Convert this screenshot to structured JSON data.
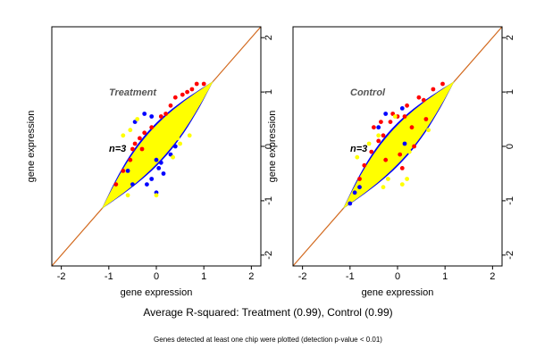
{
  "chart_data": [
    {
      "type": "scatter",
      "title": "Treatment",
      "annotation": "n=3",
      "xlabel": "gene expression",
      "ylabel": "gene expression",
      "xlim": [
        -2.2,
        2.2
      ],
      "ylim": [
        -2.2,
        2.2
      ],
      "xticks": [
        "-2",
        "-1",
        "0",
        "1",
        "2"
      ],
      "yticks": [
        "-2",
        "-1",
        "0",
        "1",
        "2"
      ],
      "reference_line": {
        "slope": 1,
        "intercept": 0,
        "color": "#d2691e"
      },
      "cloud": {
        "from": -1.15,
        "to": 1.2,
        "color": "#ffff00",
        "outline": "#0000ff"
      },
      "highlights": {
        "red": [
          [
            -0.35,
            0.15
          ],
          [
            -0.5,
            -0.05
          ],
          [
            -0.25,
            0.25
          ],
          [
            0.3,
            0.75
          ],
          [
            0.55,
            0.95
          ],
          [
            0.85,
            1.15
          ],
          [
            1.0,
            1.15
          ],
          [
            -0.7,
            -0.45
          ],
          [
            -0.55,
            -0.25
          ],
          [
            0.1,
            0.55
          ],
          [
            0.4,
            0.9
          ],
          [
            -0.1,
            0.35
          ],
          [
            0.65,
            1.0
          ],
          [
            -0.45,
            0.05
          ],
          [
            0.2,
            0.6
          ],
          [
            -0.85,
            -0.7
          ],
          [
            0.75,
            1.05
          ],
          [
            -0.3,
            -0.05
          ]
        ],
        "blue": [
          [
            -0.1,
            0.55
          ],
          [
            -0.25,
            0.6
          ],
          [
            -0.45,
            0.45
          ],
          [
            0.0,
            -0.25
          ],
          [
            0.05,
            -0.4
          ],
          [
            0.15,
            -0.5
          ],
          [
            -0.1,
            -0.6
          ],
          [
            -0.2,
            -0.7
          ],
          [
            0.1,
            -0.3
          ],
          [
            -0.5,
            -0.7
          ],
          [
            0.3,
            -0.15
          ],
          [
            0.0,
            -0.85
          ],
          [
            0.4,
            0.0
          ],
          [
            -0.6,
            -0.45
          ]
        ],
        "yellow": [
          [
            -0.7,
            0.2
          ],
          [
            -0.55,
            0.3
          ],
          [
            -0.4,
            0.5
          ],
          [
            0.5,
            0.05
          ],
          [
            0.35,
            -0.2
          ],
          [
            0.0,
            -0.9
          ],
          [
            -0.3,
            -0.45
          ],
          [
            0.45,
            0.15
          ],
          [
            -0.6,
            -0.9
          ],
          [
            0.7,
            0.2
          ]
        ]
      }
    },
    {
      "type": "scatter",
      "title": "Control",
      "annotation": "n=3",
      "xlabel": "gene expression",
      "ylabel": "gene expression",
      "xlim": [
        -2.2,
        2.2
      ],
      "ylim": [
        -2.2,
        2.2
      ],
      "xticks": [
        "-2",
        "-1",
        "0",
        "1",
        "2"
      ],
      "yticks": [
        "-2",
        "-1",
        "0",
        "1",
        "2"
      ],
      "reference_line": {
        "slope": 1,
        "intercept": 0,
        "color": "#d2691e"
      },
      "cloud": {
        "from": -1.15,
        "to": 1.2,
        "color": "#ffff00",
        "outline": "#0000ff"
      },
      "highlights": {
        "red": [
          [
            -0.3,
            0.2
          ],
          [
            -0.5,
            0.35
          ],
          [
            -0.15,
            0.45
          ],
          [
            0.0,
            0.55
          ],
          [
            -0.4,
            0.1
          ],
          [
            -0.55,
            -0.1
          ],
          [
            0.2,
            0.75
          ],
          [
            0.45,
            0.9
          ],
          [
            0.75,
            1.05
          ],
          [
            0.95,
            1.15
          ],
          [
            0.15,
            0.55
          ],
          [
            0.55,
            0.85
          ],
          [
            0.3,
            0.35
          ],
          [
            -0.7,
            -0.35
          ],
          [
            -0.25,
            -0.25
          ],
          [
            0.05,
            -0.15
          ],
          [
            0.35,
            0.0
          ],
          [
            -0.8,
            -0.6
          ],
          [
            -0.1,
            0.6
          ],
          [
            -0.35,
            0.45
          ],
          [
            0.6,
            0.5
          ],
          [
            0.1,
            -0.4
          ]
        ],
        "blue": [
          [
            -0.8,
            -0.75
          ],
          [
            -0.9,
            -0.85
          ],
          [
            -0.25,
            0.6
          ],
          [
            0.1,
            0.7
          ],
          [
            -1.0,
            -1.05
          ],
          [
            -0.4,
            0.35
          ],
          [
            0.15,
            0.05
          ]
        ],
        "yellow": [
          [
            -0.6,
            0.05
          ],
          [
            -0.4,
            0.2
          ],
          [
            0.1,
            -0.7
          ],
          [
            -0.2,
            -0.6
          ],
          [
            0.2,
            -0.6
          ],
          [
            -0.05,
            0.55
          ],
          [
            0.4,
            0.65
          ],
          [
            -0.85,
            -0.2
          ],
          [
            0.65,
            0.3
          ],
          [
            -0.3,
            -0.75
          ],
          [
            0.25,
            -0.1
          ]
        ]
      }
    }
  ],
  "caption": "Average R-squared: Treatment (0.99), Control (0.99)",
  "footnote": "Genes detected at least one chip were plotted (detection p-value < 0.01)"
}
